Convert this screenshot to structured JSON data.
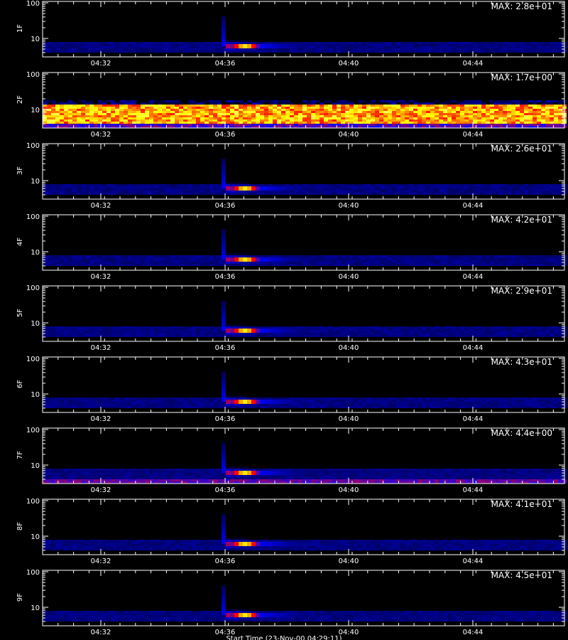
{
  "chart_data": {
    "type": "heatmap",
    "x_ticks": [
      "04:32",
      "04:36",
      "04:40",
      "04:44"
    ],
    "y_ticks": [
      "10",
      "100"
    ],
    "panels": [
      {
        "ylabel": "1F",
        "max_label": "MAX: 2.8e+01",
        "max": 28,
        "pattern": "burst"
      },
      {
        "ylabel": "2F",
        "max_label": "MAX: 1.7e+00",
        "max": 1.7,
        "pattern": "band"
      },
      {
        "ylabel": "3F",
        "max_label": "MAX: 2.6e+01",
        "max": 26,
        "pattern": "burst"
      },
      {
        "ylabel": "4F",
        "max_label": "MAX: 4.2e+01",
        "max": 42,
        "pattern": "burst"
      },
      {
        "ylabel": "5F",
        "max_label": "MAX: 2.9e+01",
        "max": 29,
        "pattern": "burst"
      },
      {
        "ylabel": "6F",
        "max_label": "MAX: 4.3e+01",
        "max": 43,
        "pattern": "burst"
      },
      {
        "ylabel": "7F",
        "max_label": "MAX: 4.4e+00",
        "max": 4.4,
        "pattern": "burst-noisy"
      },
      {
        "ylabel": "8F",
        "max_label": "MAX: 4.1e+01",
        "max": 41,
        "pattern": "burst"
      },
      {
        "ylabel": "9F",
        "max_label": "MAX: 4.5e+01",
        "max": 45,
        "pattern": "burst"
      }
    ],
    "colormap": [
      "#000000",
      "#0000ff",
      "#ff0000",
      "#ffff00",
      "#ffffff"
    ],
    "footer": "Start Time (23-Nov-00 04:29:11)"
  }
}
